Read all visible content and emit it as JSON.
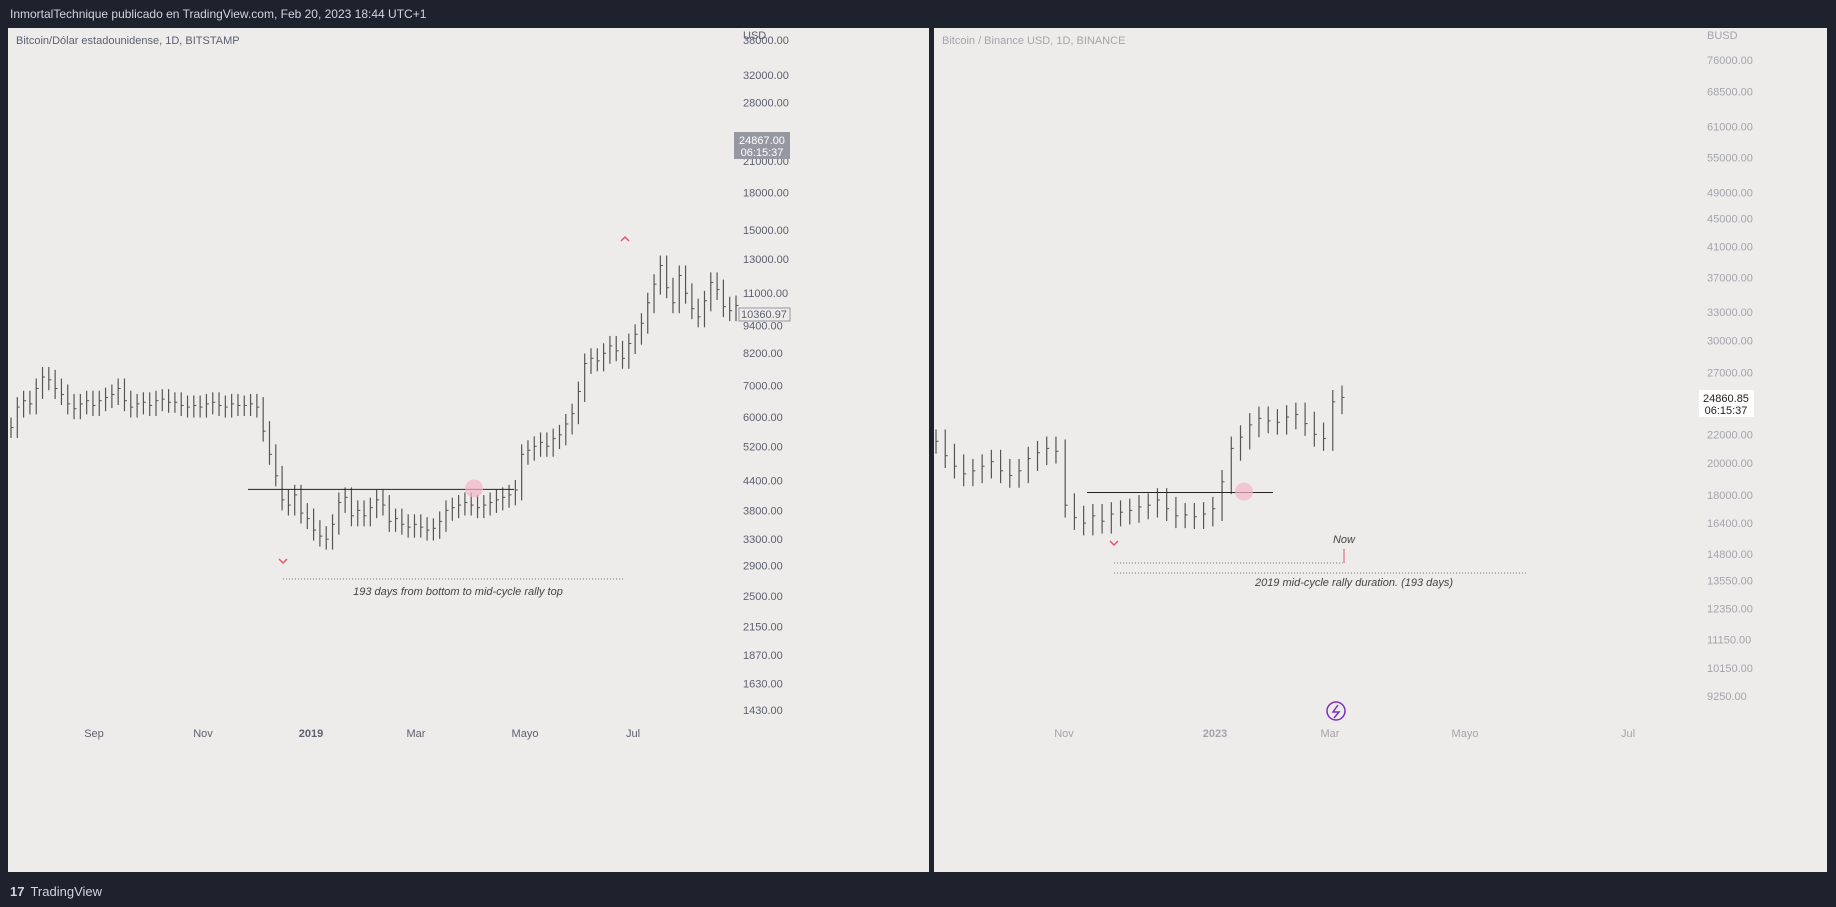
{
  "header": {
    "title": "InmortalTechnique publicado en TradingView.com, Feb 20, 2023 18:44 UTC+1"
  },
  "footer": {
    "brand": "TradingView",
    "logo_text": "17"
  },
  "colors": {
    "marker": "#e8506e",
    "circle": "#f4b6c4",
    "line": "#222222",
    "bars": "#555555",
    "price_tag_bg": "#9598a1"
  },
  "chart_data": [
    {
      "type": "ohlc",
      "title": "Bitcoin/Dólar estadounidense, 1D, BITSTAMP",
      "currency": "USD",
      "y_scale": "log",
      "y_ticks": [
        "38000.00",
        "32000.00",
        "28000.00",
        "21000.00",
        "18000.00",
        "15000.00",
        "13000.00",
        "11000.00",
        "9400.00",
        "8200.00",
        "7000.00",
        "6000.00",
        "5200.00",
        "4400.00",
        "3800.00",
        "3300.00",
        "2900.00",
        "2500.00",
        "2150.00",
        "1870.00",
        "1630.00",
        "1430.00"
      ],
      "x_ticks": [
        "Sep",
        "Nov",
        "2019",
        "Mar",
        "Mayo",
        "Jul"
      ],
      "current_price": {
        "value": "24867.00",
        "countdown": "06:15:37"
      },
      "last_price_label": "10360.97",
      "series": [
        {
          "v": 5700
        },
        {
          "v": 6300
        },
        {
          "v": 6500
        },
        {
          "v": 6400
        },
        {
          "v": 6900
        },
        {
          "v": 7300
        },
        {
          "v": 7200
        },
        {
          "v": 6900
        },
        {
          "v": 6700
        },
        {
          "v": 6400
        },
        {
          "v": 6250
        },
        {
          "v": 6400
        },
        {
          "v": 6500
        },
        {
          "v": 6350
        },
        {
          "v": 6500
        },
        {
          "v": 6600
        },
        {
          "v": 6700
        },
        {
          "v": 6900
        },
        {
          "v": 6500
        },
        {
          "v": 6300
        },
        {
          "v": 6400
        },
        {
          "v": 6450
        },
        {
          "v": 6350
        },
        {
          "v": 6500
        },
        {
          "v": 6550
        },
        {
          "v": 6450
        },
        {
          "v": 6450
        },
        {
          "v": 6350
        },
        {
          "v": 6300
        },
        {
          "v": 6350
        },
        {
          "v": 6300
        },
        {
          "v": 6400
        },
        {
          "v": 6450
        },
        {
          "v": 6350
        },
        {
          "v": 6300
        },
        {
          "v": 6400
        },
        {
          "v": 6350
        },
        {
          "v": 6350
        },
        {
          "v": 6400
        },
        {
          "v": 6300
        },
        {
          "v": 5600
        },
        {
          "v": 5000
        },
        {
          "v": 4500
        },
        {
          "v": 4000
        },
        {
          "v": 3900
        },
        {
          "v": 4100
        },
        {
          "v": 3750
        },
        {
          "v": 3650
        },
        {
          "v": 3450
        },
        {
          "v": 3350
        },
        {
          "v": 3300
        },
        {
          "v": 3550
        },
        {
          "v": 3950
        },
        {
          "v": 4050
        },
        {
          "v": 3700
        },
        {
          "v": 3800
        },
        {
          "v": 3700
        },
        {
          "v": 3850
        },
        {
          "v": 4000
        },
        {
          "v": 3900
        },
        {
          "v": 3600
        },
        {
          "v": 3650
        },
        {
          "v": 3550
        },
        {
          "v": 3500
        },
        {
          "v": 3550
        },
        {
          "v": 3500
        },
        {
          "v": 3450
        },
        {
          "v": 3480
        },
        {
          "v": 3600
        },
        {
          "v": 3800
        },
        {
          "v": 3850
        },
        {
          "v": 3900
        },
        {
          "v": 3950
        },
        {
          "v": 3900
        },
        {
          "v": 3850
        },
        {
          "v": 3900
        },
        {
          "v": 3950
        },
        {
          "v": 4000
        },
        {
          "v": 4050
        },
        {
          "v": 4100
        },
        {
          "v": 4200
        },
        {
          "v": 5000
        },
        {
          "v": 5100
        },
        {
          "v": 5200
        },
        {
          "v": 5300
        },
        {
          "v": 5200
        },
        {
          "v": 5400
        },
        {
          "v": 5500
        },
        {
          "v": 5800
        },
        {
          "v": 6100
        },
        {
          "v": 6800
        },
        {
          "v": 7800
        },
        {
          "v": 8000
        },
        {
          "v": 7900
        },
        {
          "v": 8200
        },
        {
          "v": 8500
        },
        {
          "v": 8300
        },
        {
          "v": 8000
        },
        {
          "v": 8600
        },
        {
          "v": 9000
        },
        {
          "v": 9500
        },
        {
          "v": 10500
        },
        {
          "v": 11500
        },
        {
          "v": 12600
        },
        {
          "v": 11300
        },
        {
          "v": 10500
        },
        {
          "v": 12000
        },
        {
          "v": 11000
        },
        {
          "v": 10200
        },
        {
          "v": 9800
        },
        {
          "v": 10600
        },
        {
          "v": 11600
        },
        {
          "v": 11200
        },
        {
          "v": 10300
        },
        {
          "v": 10100
        },
        {
          "v": 10360
        }
      ],
      "annotation": "193 days from bottom to mid-cycle rally top"
    },
    {
      "type": "ohlc",
      "title": "Bitcoin / Binance USD, 1D, BINANCE",
      "currency": "BUSD",
      "y_scale": "log",
      "y_ticks": [
        "76000.00",
        "68500.00",
        "61000.00",
        "55000.00",
        "49000.00",
        "45000.00",
        "41000.00",
        "37000.00",
        "33000.00",
        "30000.00",
        "27000.00",
        "22000.00",
        "20000.00",
        "18000.00",
        "16400.00",
        "14800.00",
        "13550.00",
        "12350.00",
        "11150.00",
        "10150.00",
        "9250.00"
      ],
      "x_ticks": [
        "Nov",
        "2023",
        "Mar",
        "Mayo",
        "Jul"
      ],
      "current_price": {
        "value": "24860.85",
        "countdown": "06:15:37"
      },
      "series": [
        {
          "v": 21500
        },
        {
          "v": 20500
        },
        {
          "v": 19800
        },
        {
          "v": 19300
        },
        {
          "v": 19500
        },
        {
          "v": 19800
        },
        {
          "v": 20100
        },
        {
          "v": 19500
        },
        {
          "v": 19200
        },
        {
          "v": 19500
        },
        {
          "v": 20300
        },
        {
          "v": 20700
        },
        {
          "v": 21000
        },
        {
          "v": 20800
        },
        {
          "v": 17400
        },
        {
          "v": 16700
        },
        {
          "v": 16400
        },
        {
          "v": 16800
        },
        {
          "v": 16500
        },
        {
          "v": 16900
        },
        {
          "v": 17000
        },
        {
          "v": 17100
        },
        {
          "v": 17300
        },
        {
          "v": 17400
        },
        {
          "v": 17700
        },
        {
          "v": 17200
        },
        {
          "v": 16800
        },
        {
          "v": 16850
        },
        {
          "v": 16750
        },
        {
          "v": 16900
        },
        {
          "v": 17200
        },
        {
          "v": 18800
        },
        {
          "v": 21000
        },
        {
          "v": 21800
        },
        {
          "v": 22700
        },
        {
          "v": 23200
        },
        {
          "v": 23000
        },
        {
          "v": 22900
        },
        {
          "v": 23300
        },
        {
          "v": 23500
        },
        {
          "v": 22800
        },
        {
          "v": 22000
        },
        {
          "v": 21700
        },
        {
          "v": 24500
        },
        {
          "v": 24860
        }
      ],
      "annotation": "2019 mid-cycle rally duration. (193 days)",
      "now_label": "Now"
    }
  ]
}
